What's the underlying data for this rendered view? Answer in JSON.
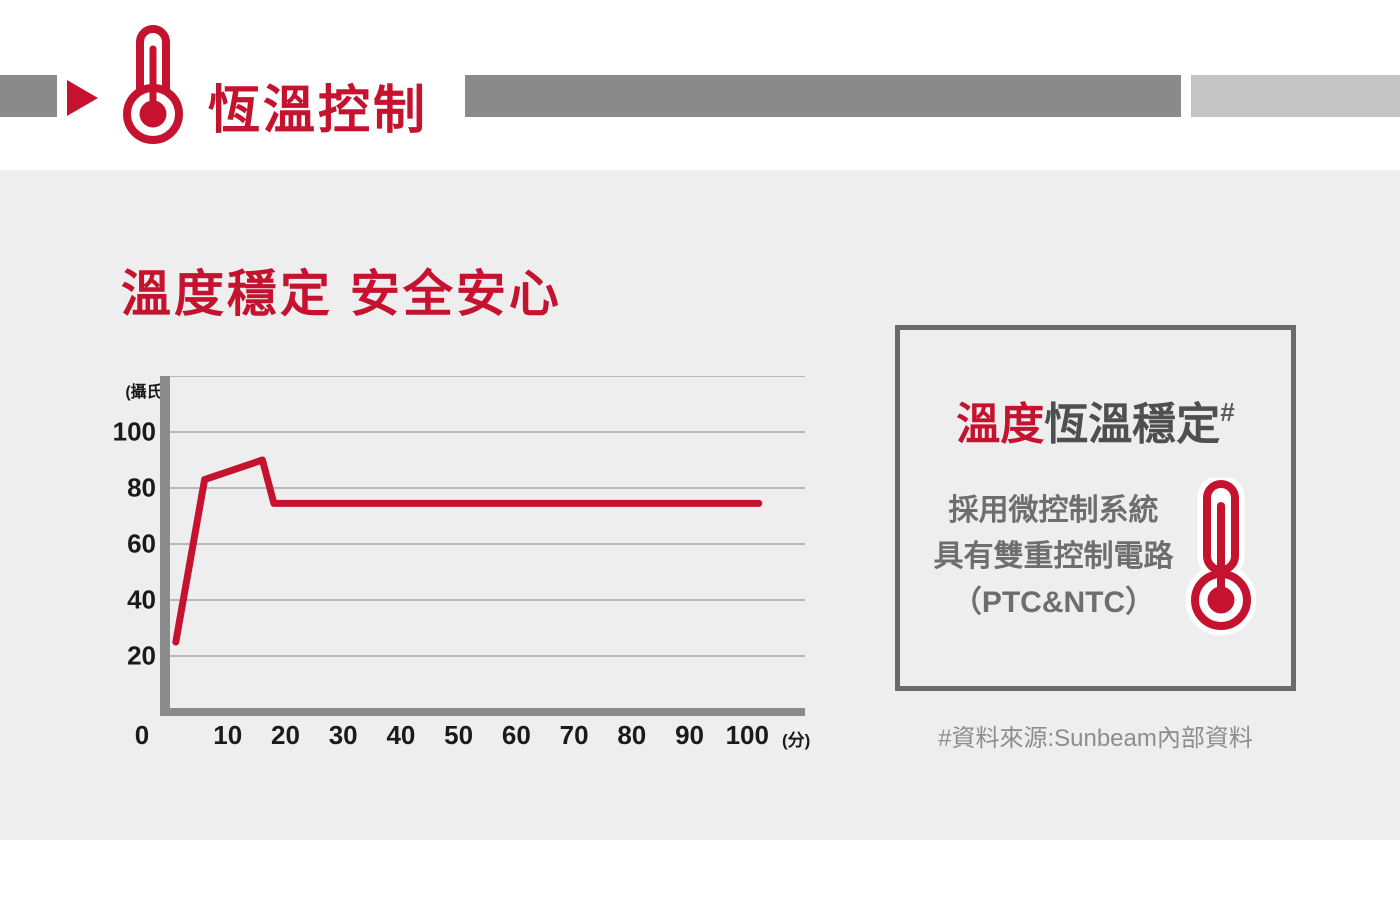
{
  "header": {
    "title": "恆溫控制",
    "accent_red": "#c4122f",
    "bar_dark": "#8a8a8a",
    "bar_light": "#c6c6c6"
  },
  "section": {
    "heading": "溫度穩定 安全安心",
    "background": "#eeeeee"
  },
  "chart_data": {
    "type": "line",
    "title": "",
    "y_unit_label": "(攝氏)",
    "x_unit_label": "(分)",
    "xticks": [
      0,
      10,
      20,
      30,
      40,
      50,
      60,
      70,
      80,
      90,
      100
    ],
    "yticks": [
      20,
      40,
      60,
      80,
      100
    ],
    "gridlines": [
      20,
      40,
      60,
      80,
      100,
      120
    ],
    "xlim": [
      0,
      110
    ],
    "ylim": [
      0,
      120
    ],
    "points": [
      [
        1,
        25
      ],
      [
        6,
        83
      ],
      [
        16,
        90
      ],
      [
        18,
        74.5
      ],
      [
        102,
        74.5
      ]
    ],
    "line_color": "#c4122f",
    "grid_color": "#a5a5a5",
    "axis_color": "#8b8b8b",
    "grid": true,
    "legend": false
  },
  "info_box": {
    "title_highlight": "溫度",
    "title_rest": "恆溫穩定",
    "title_superscript": "#",
    "lines": [
      "採用微控制系統",
      "具有雙重控制電路",
      "（PTC&NTC）"
    ]
  },
  "footnote": "#資料來源:Sunbeam內部資料"
}
